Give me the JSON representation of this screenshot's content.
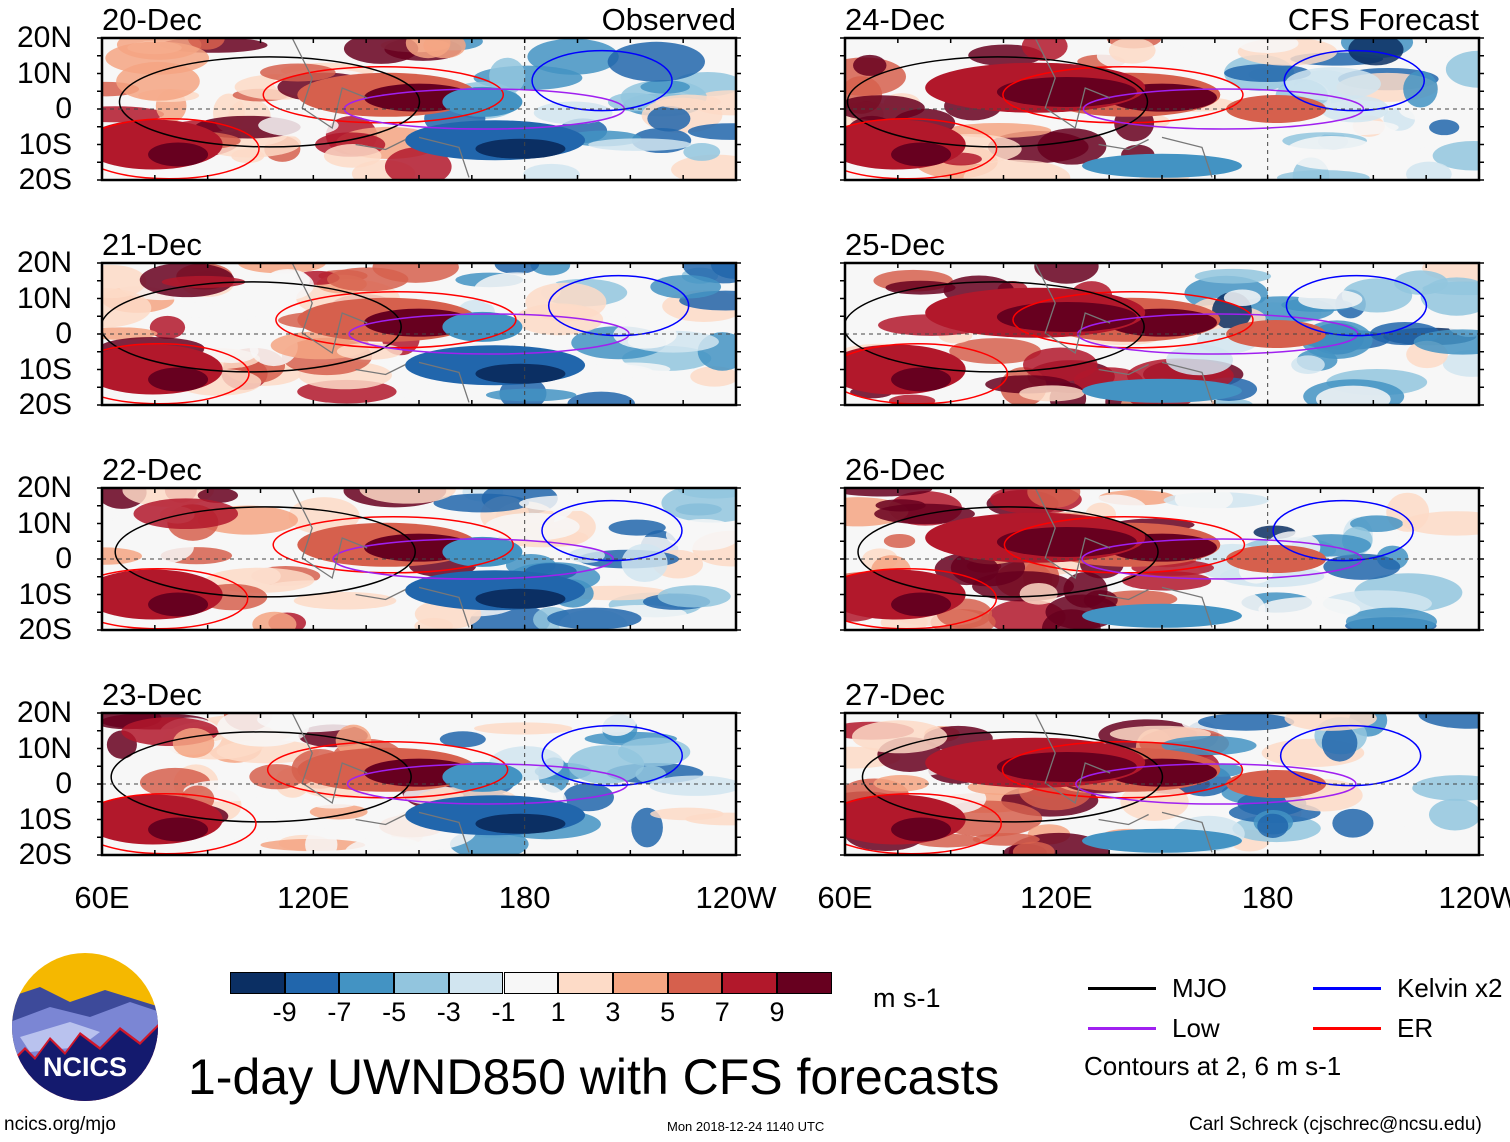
{
  "left_header": "Observed",
  "right_header": "CFS Forecast",
  "panels": [
    {
      "date": "20-Dec",
      "column": "observed"
    },
    {
      "date": "21-Dec",
      "column": "observed"
    },
    {
      "date": "22-Dec",
      "column": "observed"
    },
    {
      "date": "23-Dec",
      "column": "observed"
    },
    {
      "date": "24-Dec",
      "column": "forecast"
    },
    {
      "date": "25-Dec",
      "column": "forecast"
    },
    {
      "date": "26-Dec",
      "column": "forecast"
    },
    {
      "date": "27-Dec",
      "column": "forecast"
    }
  ],
  "lat_labels": [
    "20N",
    "10N",
    "0",
    "10S",
    "20S"
  ],
  "lon_labels": [
    "60E",
    "120E",
    "180",
    "120W"
  ],
  "colorbar": {
    "colors": [
      "#0b2f63",
      "#2166ac",
      "#4393c3",
      "#92c5de",
      "#d1e5f0",
      "#f7f7f7",
      "#fddbc7",
      "#f4a582",
      "#d6604d",
      "#b2182b",
      "#67001f"
    ],
    "labels": [
      "-9",
      "-7",
      "-5",
      "-3",
      "-1",
      "1",
      "3",
      "5",
      "7",
      "9"
    ],
    "units": "m s-1"
  },
  "legend": {
    "items": [
      {
        "label": "MJO",
        "color": "#000000"
      },
      {
        "label": "Kelvin x2",
        "color": "#0000ff"
      },
      {
        "label": "Low",
        "color": "#a020f0"
      },
      {
        "label": "ER",
        "color": "#ff0000"
      }
    ],
    "note": "Contours at 2, 6 m s-1"
  },
  "logo_text": "NCICS",
  "title": "1-day UWND850 with CFS forecasts",
  "footer": {
    "url": "ncics.org/mjo",
    "timestamp": "Mon 2018-12-24 1140 UTC",
    "credit": "Carl Schreck (cjschrec@ncsu.edu)"
  }
}
